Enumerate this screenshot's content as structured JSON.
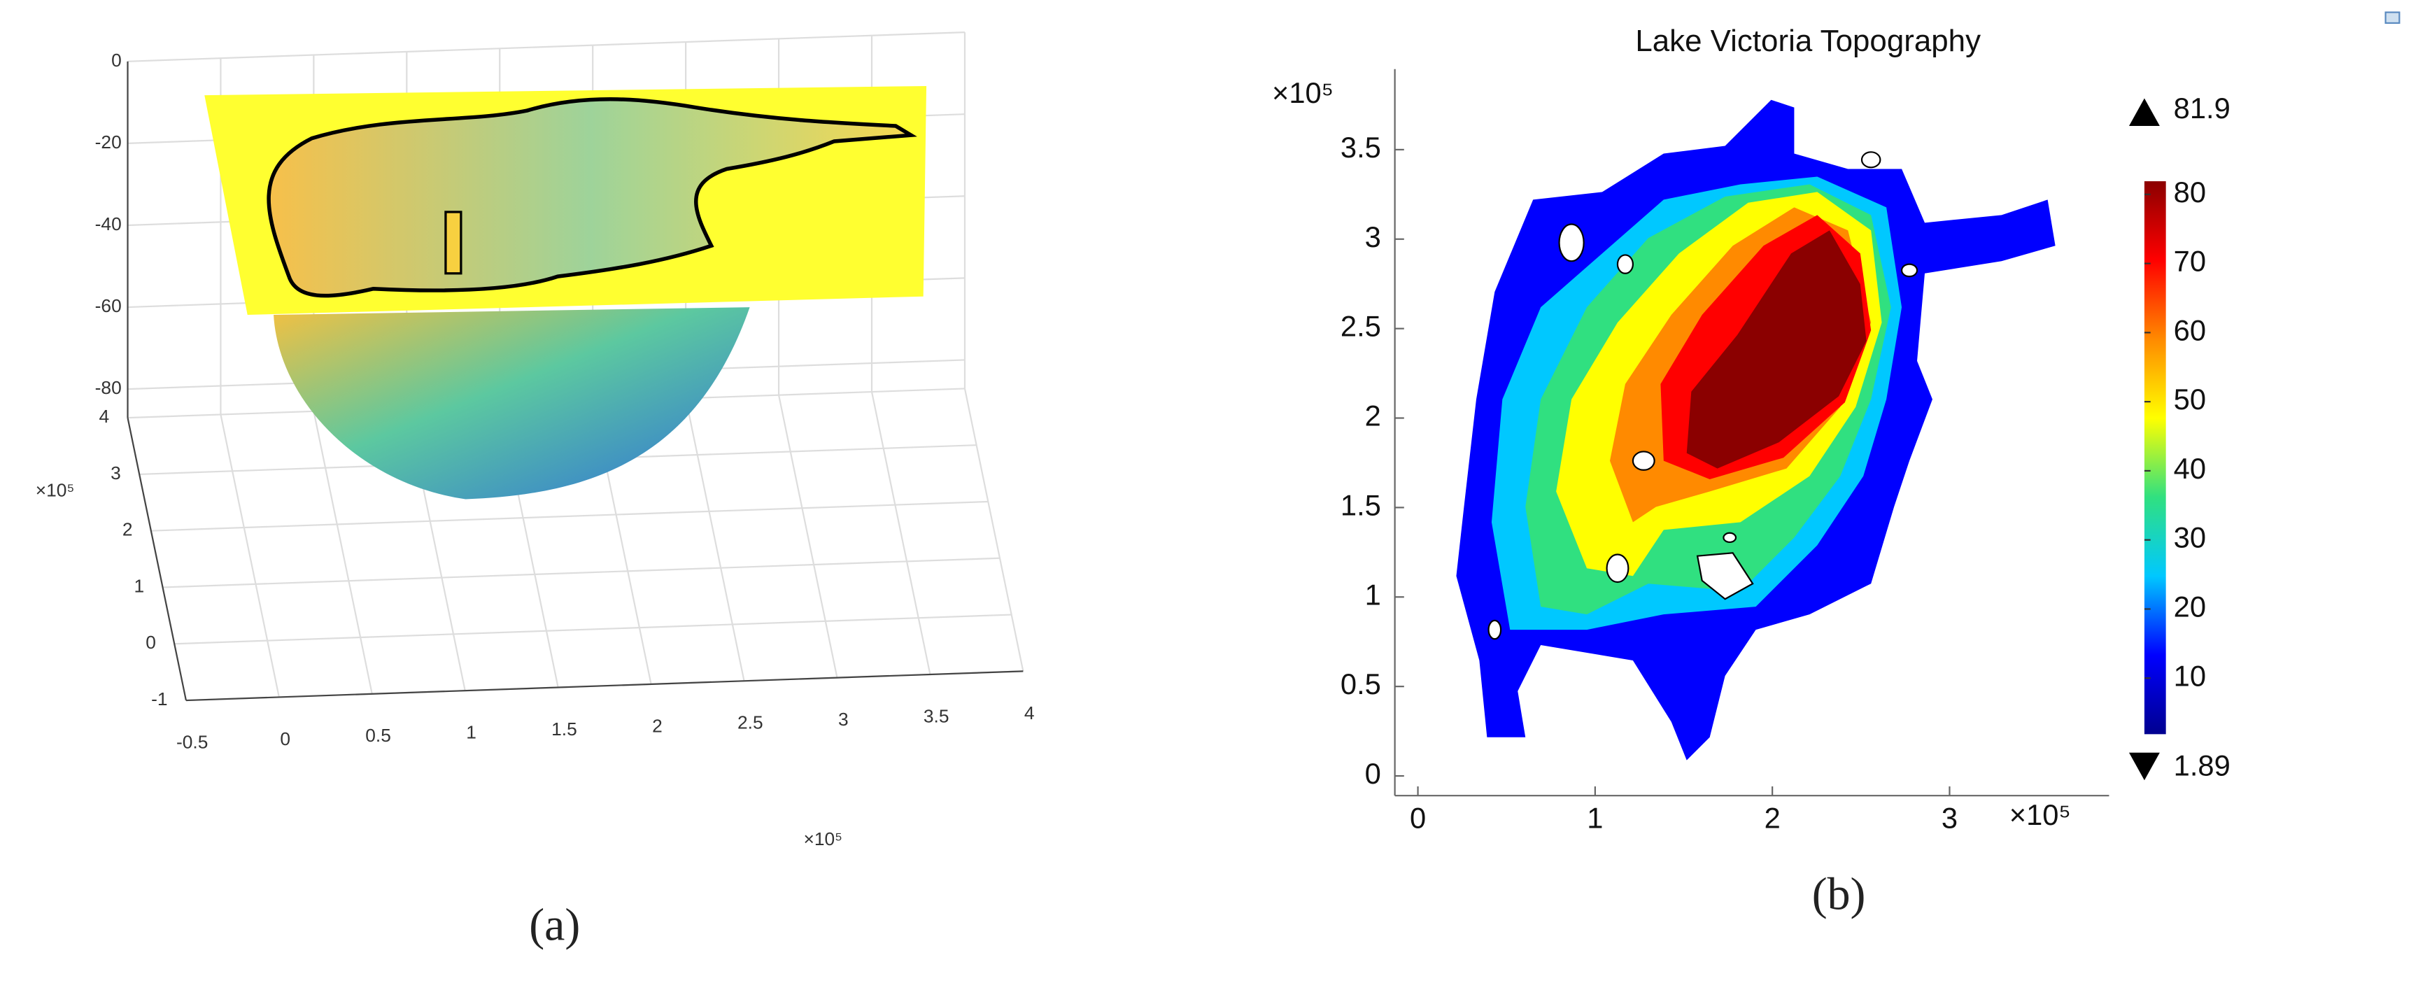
{
  "chart_data": [
    {
      "type": "surface3d",
      "label": "(a)",
      "xlim": [
        -0.5,
        4
      ],
      "xticks": [
        -0.5,
        0,
        0.5,
        1,
        1.5,
        2,
        2.5,
        3,
        3.5,
        4
      ],
      "x_multiplier": "×10⁵",
      "ylim": [
        -1,
        4
      ],
      "yticks": [
        -1,
        0,
        1,
        2,
        3,
        4
      ],
      "y_multiplier": "×10⁵",
      "zlim": [
        -87,
        0
      ],
      "zticks": [
        0,
        -20,
        -40,
        -60,
        -80
      ],
      "grid": true
    },
    {
      "type": "heatmap",
      "title": "Lake Victoria Topography",
      "label": "(b)",
      "xlim": [
        -0.13,
        3.9
      ],
      "xticks": [
        0,
        1,
        2,
        3
      ],
      "x_multiplier": "×10⁵",
      "ylim": [
        -0.11,
        3.95
      ],
      "yticks": [
        0,
        0.5,
        1,
        1.5,
        2,
        2.5,
        3,
        3.5
      ],
      "y_multiplier": "×10⁵",
      "clim": [
        1.89,
        81.9
      ],
      "cticks": [
        10,
        20,
        30,
        40,
        50,
        60,
        70,
        80
      ],
      "max": 81.9,
      "min": 1.89,
      "colormap": [
        "#00008f",
        "#0000ff",
        "#00c8ff",
        "#30e080",
        "#ffff00",
        "#ff8a00",
        "#ff0000",
        "#8b0000"
      ]
    }
  ]
}
